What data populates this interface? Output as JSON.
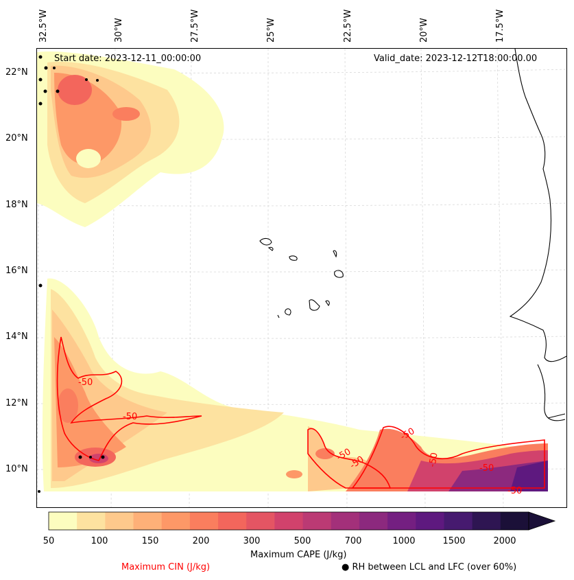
{
  "header": {
    "start_date": "Start date: 2023-12-11_00:00:00",
    "valid_date": "Valid_date: 2023-12-12T18:00:00.00"
  },
  "axes": {
    "longitude_labels": [
      "32.5°W",
      "30°W",
      "27.5°W",
      "25°W",
      "22.5°W",
      "20°W",
      "17.5°W"
    ],
    "latitude_labels": [
      "22°N",
      "20°N",
      "18°N",
      "16°N",
      "14°N",
      "12°N",
      "10°N"
    ]
  },
  "contour": {
    "color": "#ff0000",
    "labels": [
      "-50",
      "-50",
      "-50",
      "-50",
      "-50",
      "-50",
      "-50",
      "-50"
    ]
  },
  "colorbar": {
    "ticks": [
      "50",
      "100",
      "150",
      "200",
      "300",
      "500",
      "700",
      "1000",
      "1500",
      "2000"
    ],
    "colors": [
      "#fcfdbf",
      "#fde2a0",
      "#fec98c",
      "#feb078",
      "#fd9867",
      "#fa7e5e",
      "#f3665c",
      "#e45563",
      "#d1426c",
      "#bb3a74",
      "#a3307a",
      "#8c297e",
      "#741f81",
      "#5e197f",
      "#461a6f",
      "#2e1552",
      "#1b1038"
    ],
    "label": "Maximum CAPE (J/kg)"
  },
  "footer": {
    "cin_label": "Maximum CIN (J/kg)",
    "rh_label": "RH between LCL and LFC (over 60%)",
    "rh_marker": "●"
  }
}
